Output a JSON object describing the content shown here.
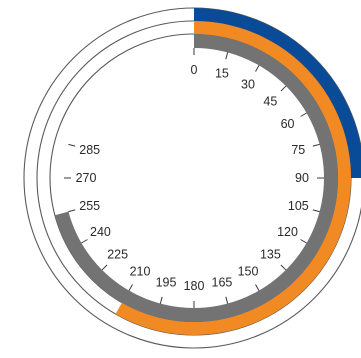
{
  "dial": {
    "ticks": [
      "0",
      "15",
      "30",
      "45",
      "60",
      "75",
      "90",
      "105",
      "120",
      "135",
      "150",
      "165",
      "180",
      "195",
      "210",
      "225",
      "240",
      "255",
      "270",
      "285"
    ],
    "degrees_per_tick": 15,
    "arcs": [
      {
        "name": "blue-arc",
        "color": "#0a4b98",
        "start_deg": 0,
        "end_deg": 90
      },
      {
        "name": "orange-arc",
        "color": "#f28a24",
        "start_deg": 0,
        "end_deg": 210
      },
      {
        "name": "gray-arc",
        "color": "#737373",
        "start_deg": 0,
        "end_deg": 255
      }
    ]
  }
}
